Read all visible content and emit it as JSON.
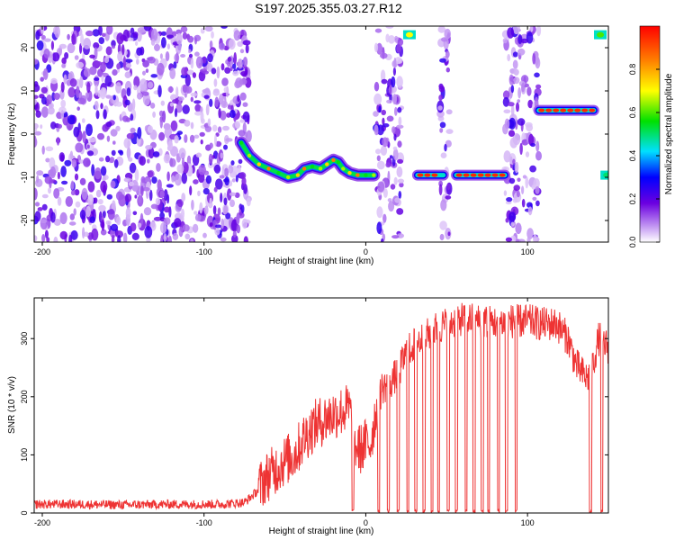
{
  "title": "S197.2025.355.03.27.R12",
  "chart_data": [
    {
      "type": "heatmap",
      "xlabel": "Height of straight line (km)",
      "ylabel": "Frequency (Hz)",
      "xlim": [
        -205,
        150
      ],
      "ylim": [
        -25,
        25
      ],
      "xticks": [
        -200,
        -100,
        0,
        100
      ],
      "yticks": [
        -20,
        -10,
        0,
        10,
        20
      ],
      "xtick_labels": [
        "-200",
        "-100",
        "0",
        "100"
      ],
      "ytick_labels": [
        "-20",
        "-10",
        "0",
        "10",
        "20"
      ],
      "colorbar": {
        "label": "Normalized spectral amplitude",
        "range": [
          0,
          1
        ],
        "ticks": [
          0.0,
          0.2,
          0.4,
          0.6,
          0.8
        ],
        "tick_labels": [
          "0.0",
          "0.2",
          "0.4",
          "0.6",
          "0.8"
        ]
      },
      "noise_regions_km": [
        [
          -205,
          -72
        ],
        [
          6,
          22
        ],
        [
          46,
          52
        ],
        [
          86,
          107
        ]
      ],
      "blank_regions_km": [
        [
          -72,
          6
        ],
        [
          22,
          46
        ],
        [
          52,
          86
        ],
        [
          107,
          150
        ]
      ],
      "ridge": [
        {
          "x": -77,
          "y": -2
        },
        {
          "x": -72,
          "y": -5
        },
        {
          "x": -66,
          "y": -7
        },
        {
          "x": -60,
          "y": -8
        },
        {
          "x": -54,
          "y": -9
        },
        {
          "x": -48,
          "y": -10
        },
        {
          "x": -42,
          "y": -9.5
        },
        {
          "x": -38,
          "y": -8
        },
        {
          "x": -33,
          "y": -7.5
        },
        {
          "x": -28,
          "y": -8
        },
        {
          "x": -24,
          "y": -7
        },
        {
          "x": -20,
          "y": -6
        },
        {
          "x": -17,
          "y": -6.5
        },
        {
          "x": -14,
          "y": -8
        },
        {
          "x": -10,
          "y": -9
        },
        {
          "x": -5,
          "y": -9.5
        },
        {
          "x": 0,
          "y": -9.5
        },
        {
          "x": 5,
          "y": -9.5
        }
      ],
      "segments": [
        {
          "x0": 32,
          "x1": 48,
          "y": -9.5,
          "amp": 0.95
        },
        {
          "x0": 56,
          "x1": 86,
          "y": -9.5,
          "amp": 0.95
        },
        {
          "x0": 107,
          "x1": 141,
          "y": 5.5,
          "amp": 0.95
        }
      ],
      "spots": [
        {
          "x": 27,
          "y": 23,
          "amp": 0.7
        },
        {
          "x": 145,
          "y": 23,
          "amp": 0.6
        },
        {
          "x": 149,
          "y": -9.5,
          "amp": 0.5
        }
      ]
    },
    {
      "type": "line",
      "xlabel": "Height of straight line (km)",
      "ylabel": "SNR (10 * v/v)",
      "xlim": [
        -205,
        150
      ],
      "ylim": [
        0,
        370
      ],
      "xticks": [
        -200,
        -100,
        0,
        100
      ],
      "yticks": [
        0,
        100,
        200,
        300
      ],
      "xtick_labels": [
        "-200",
        "-100",
        "0",
        "100"
      ],
      "ytick_labels": [
        "0",
        "100",
        "200",
        "300"
      ],
      "color": "#ee3333",
      "envelope": [
        {
          "x": -205,
          "y": 15
        },
        {
          "x": -180,
          "y": 15
        },
        {
          "x": -150,
          "y": 14
        },
        {
          "x": -120,
          "y": 15
        },
        {
          "x": -90,
          "y": 15
        },
        {
          "x": -75,
          "y": 18
        },
        {
          "x": -68,
          "y": 35
        },
        {
          "x": -62,
          "y": 60
        },
        {
          "x": -56,
          "y": 75
        },
        {
          "x": -50,
          "y": 90
        },
        {
          "x": -44,
          "y": 100
        },
        {
          "x": -38,
          "y": 130
        },
        {
          "x": -32,
          "y": 150
        },
        {
          "x": -26,
          "y": 160
        },
        {
          "x": -20,
          "y": 170
        },
        {
          "x": -15,
          "y": 175
        },
        {
          "x": -10,
          "y": 180
        },
        {
          "x": -7,
          "y": 115
        },
        {
          "x": -3,
          "y": 110
        },
        {
          "x": 0,
          "y": 120
        },
        {
          "x": 3,
          "y": 120
        },
        {
          "x": 6,
          "y": 170
        },
        {
          "x": 10,
          "y": 215
        },
        {
          "x": 15,
          "y": 225
        },
        {
          "x": 20,
          "y": 240
        },
        {
          "x": 25,
          "y": 275
        },
        {
          "x": 30,
          "y": 290
        },
        {
          "x": 35,
          "y": 300
        },
        {
          "x": 40,
          "y": 310
        },
        {
          "x": 45,
          "y": 320
        },
        {
          "x": 50,
          "y": 325
        },
        {
          "x": 55,
          "y": 330
        },
        {
          "x": 60,
          "y": 335
        },
        {
          "x": 70,
          "y": 330
        },
        {
          "x": 80,
          "y": 328
        },
        {
          "x": 90,
          "y": 330
        },
        {
          "x": 100,
          "y": 330
        },
        {
          "x": 110,
          "y": 325
        },
        {
          "x": 118,
          "y": 325
        },
        {
          "x": 125,
          "y": 300
        },
        {
          "x": 130,
          "y": 255
        },
        {
          "x": 134,
          "y": 240
        },
        {
          "x": 137,
          "y": 230
        },
        {
          "x": 140,
          "y": 250
        },
        {
          "x": 144,
          "y": 300
        },
        {
          "x": 150,
          "y": 285
        }
      ],
      "dropouts_km": [
        -8,
        8,
        14,
        20,
        26,
        31,
        36,
        41,
        45,
        51,
        56,
        62,
        67,
        72,
        76,
        82,
        87,
        93,
        139,
        146
      ]
    }
  ]
}
